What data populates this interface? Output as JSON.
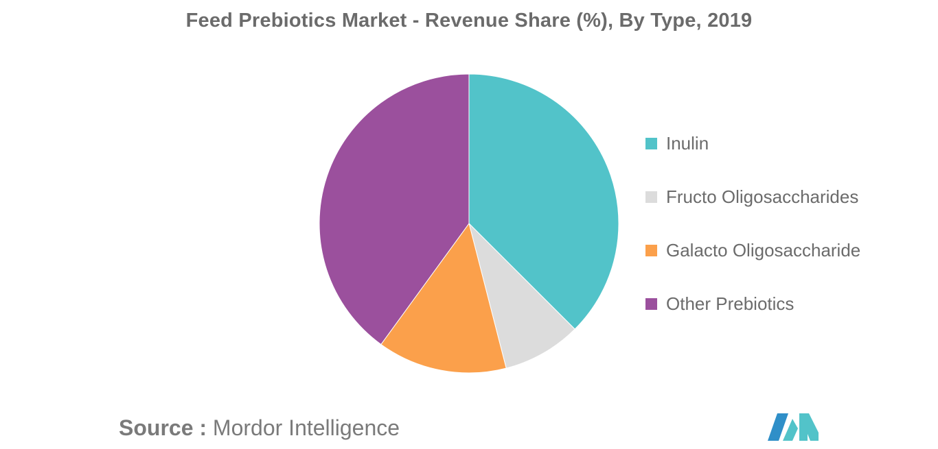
{
  "chart_data": {
    "type": "pie",
    "title": "Feed Prebiotics Market - Revenue Share (%), By Type, 2019",
    "categories": [
      "Inulin",
      "Fructo Oligosaccharides",
      "Galacto Oligosaccharide",
      "Other Prebiotics"
    ],
    "values": [
      37.5,
      8.5,
      14,
      40
    ],
    "colors": [
      "#52c3c9",
      "#dcdcdc",
      "#fba04b",
      "#9b509d"
    ],
    "legend_position": "right"
  },
  "source": {
    "label": "Source :",
    "text": "Mordor Intelligence"
  },
  "logo": {
    "icon": "mordor-intelligence-logo",
    "colors": [
      "#2f8fc8",
      "#52c3c9"
    ]
  }
}
